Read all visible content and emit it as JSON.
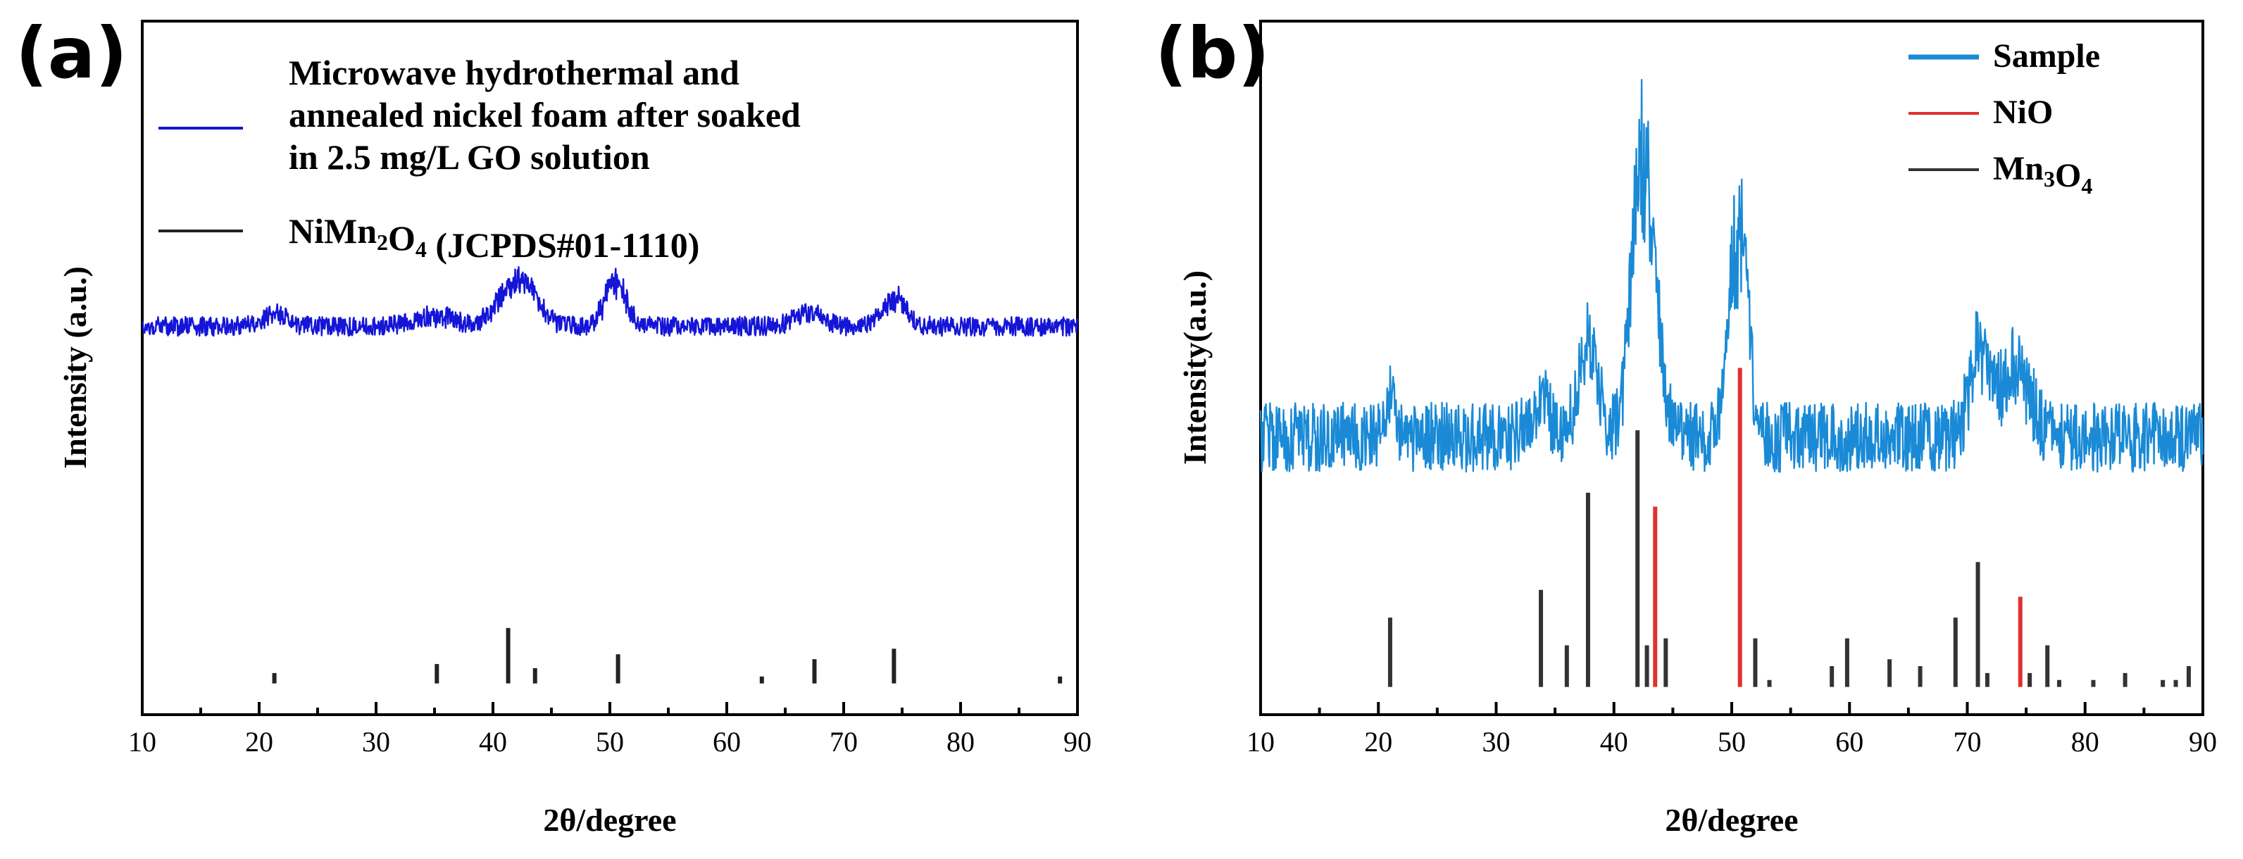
{
  "chart_data": [
    {
      "type": "line",
      "panel_label": "(a)",
      "xlabel": "2θ/degree",
      "ylabel": "Intensity (a.u.)",
      "xlim": [
        10,
        90
      ],
      "xticks": [
        10,
        20,
        30,
        40,
        50,
        60,
        70,
        80,
        90
      ],
      "legend": {
        "placement": "top",
        "entries": [
          {
            "lines": [
              "Microwave hydrothermal and",
              "annealed nickel foam after soaked",
              "in 2.5 mg/L GO solution"
            ],
            "color": "#1515d8"
          },
          {
            "parts": [
              [
                "NiMn",
                false
              ],
              [
                "2",
                true
              ],
              [
                "O",
                false
              ],
              [
                "4",
                true
              ],
              [
                " (JCPDS#01-1110)",
                false
              ]
            ],
            "color": "#222222"
          }
        ]
      },
      "series": [
        {
          "name": "Microwave hydrothermal and annealed nickel foam after soaked in 2.5 mg/L GO solution",
          "color": "#1515d8",
          "baseline": 0.56,
          "noise": 0.014,
          "peaks": [
            {
              "x": 21.5,
              "h": 0.018,
              "w": 1.0
            },
            {
              "x": 35.0,
              "h": 0.015,
              "w": 1.6
            },
            {
              "x": 41.6,
              "h": 0.05,
              "w": 1.4
            },
            {
              "x": 43.2,
              "h": 0.03,
              "w": 1.2
            },
            {
              "x": 50.5,
              "h": 0.065,
              "w": 0.9
            },
            {
              "x": 67.0,
              "h": 0.02,
              "w": 1.2
            },
            {
              "x": 74.3,
              "h": 0.04,
              "w": 1.0
            }
          ]
        }
      ],
      "references": [
        {
          "name": "NiMn2O4 (JCPDS#01-1110)",
          "color": "#222222",
          "baseline": 0.045,
          "sticks": [
            {
              "x": 21.3,
              "h": 0.015
            },
            {
              "x": 35.2,
              "h": 0.028
            },
            {
              "x": 41.3,
              "h": 0.08
            },
            {
              "x": 43.6,
              "h": 0.022
            },
            {
              "x": 50.7,
              "h": 0.042
            },
            {
              "x": 63.0,
              "h": 0.01
            },
            {
              "x": 67.5,
              "h": 0.035
            },
            {
              "x": 74.3,
              "h": 0.05
            },
            {
              "x": 88.5,
              "h": 0.01
            }
          ]
        }
      ]
    },
    {
      "type": "line",
      "panel_label": "(b)",
      "xlabel": "2θ/degree",
      "ylabel": "Intensity(a.u.)",
      "xlim": [
        10,
        90
      ],
      "xticks": [
        10,
        20,
        30,
        40,
        50,
        60,
        70,
        80,
        90
      ],
      "legend": {
        "placement": "top-right",
        "entries": [
          {
            "parts": [
              [
                "Sample",
                false
              ]
            ],
            "color": "#1a8ad6"
          },
          {
            "parts": [
              [
                "NiO",
                false
              ]
            ],
            "color": "#e03030"
          },
          {
            "parts": [
              [
                "Mn",
                false
              ],
              [
                "3",
                true
              ],
              [
                "O",
                false
              ],
              [
                "4",
                true
              ]
            ],
            "color": "#333333"
          }
        ]
      },
      "series": [
        {
          "name": "Sample",
          "color": "#1a8ad6",
          "baseline": 0.4,
          "noise": 0.05,
          "peaks": [
            {
              "x": 21.0,
              "h": 0.05,
              "w": 0.5
            },
            {
              "x": 33.8,
              "h": 0.06,
              "w": 0.8
            },
            {
              "x": 37.8,
              "h": 0.13,
              "w": 0.8
            },
            {
              "x": 42.3,
              "h": 0.35,
              "w": 0.9
            },
            {
              "x": 43.3,
              "h": 0.12,
              "w": 0.8
            },
            {
              "x": 50.6,
              "h": 0.3,
              "w": 0.8
            },
            {
              "x": 71.0,
              "h": 0.12,
              "w": 0.8
            },
            {
              "x": 74.0,
              "h": 0.11,
              "w": 1.2
            }
          ]
        }
      ],
      "references": [
        {
          "name": "NiO",
          "color": "#e03030",
          "baseline": 0.04,
          "sticks": [
            {
              "x": 43.5,
              "h": 0.26
            },
            {
              "x": 50.7,
              "h": 0.46
            },
            {
              "x": 74.5,
              "h": 0.13
            }
          ]
        },
        {
          "name": "Mn3O4",
          "color": "#333333",
          "baseline": 0.04,
          "sticks": [
            {
              "x": 21.0,
              "h": 0.1
            },
            {
              "x": 33.8,
              "h": 0.14
            },
            {
              "x": 36.0,
              "h": 0.06
            },
            {
              "x": 37.8,
              "h": 0.28
            },
            {
              "x": 42.0,
              "h": 0.37
            },
            {
              "x": 42.8,
              "h": 0.06
            },
            {
              "x": 44.4,
              "h": 0.07
            },
            {
              "x": 52.0,
              "h": 0.07
            },
            {
              "x": 53.2,
              "h": 0.01
            },
            {
              "x": 58.5,
              "h": 0.03
            },
            {
              "x": 59.8,
              "h": 0.07
            },
            {
              "x": 63.4,
              "h": 0.04
            },
            {
              "x": 66.0,
              "h": 0.03
            },
            {
              "x": 69.0,
              "h": 0.1
            },
            {
              "x": 70.9,
              "h": 0.18
            },
            {
              "x": 71.7,
              "h": 0.02
            },
            {
              "x": 75.3,
              "h": 0.02
            },
            {
              "x": 76.8,
              "h": 0.06
            },
            {
              "x": 77.8,
              "h": 0.01
            },
            {
              "x": 80.7,
              "h": 0.01
            },
            {
              "x": 83.4,
              "h": 0.02
            },
            {
              "x": 86.6,
              "h": 0.01
            },
            {
              "x": 87.7,
              "h": 0.01
            },
            {
              "x": 88.8,
              "h": 0.03
            }
          ]
        }
      ]
    }
  ]
}
